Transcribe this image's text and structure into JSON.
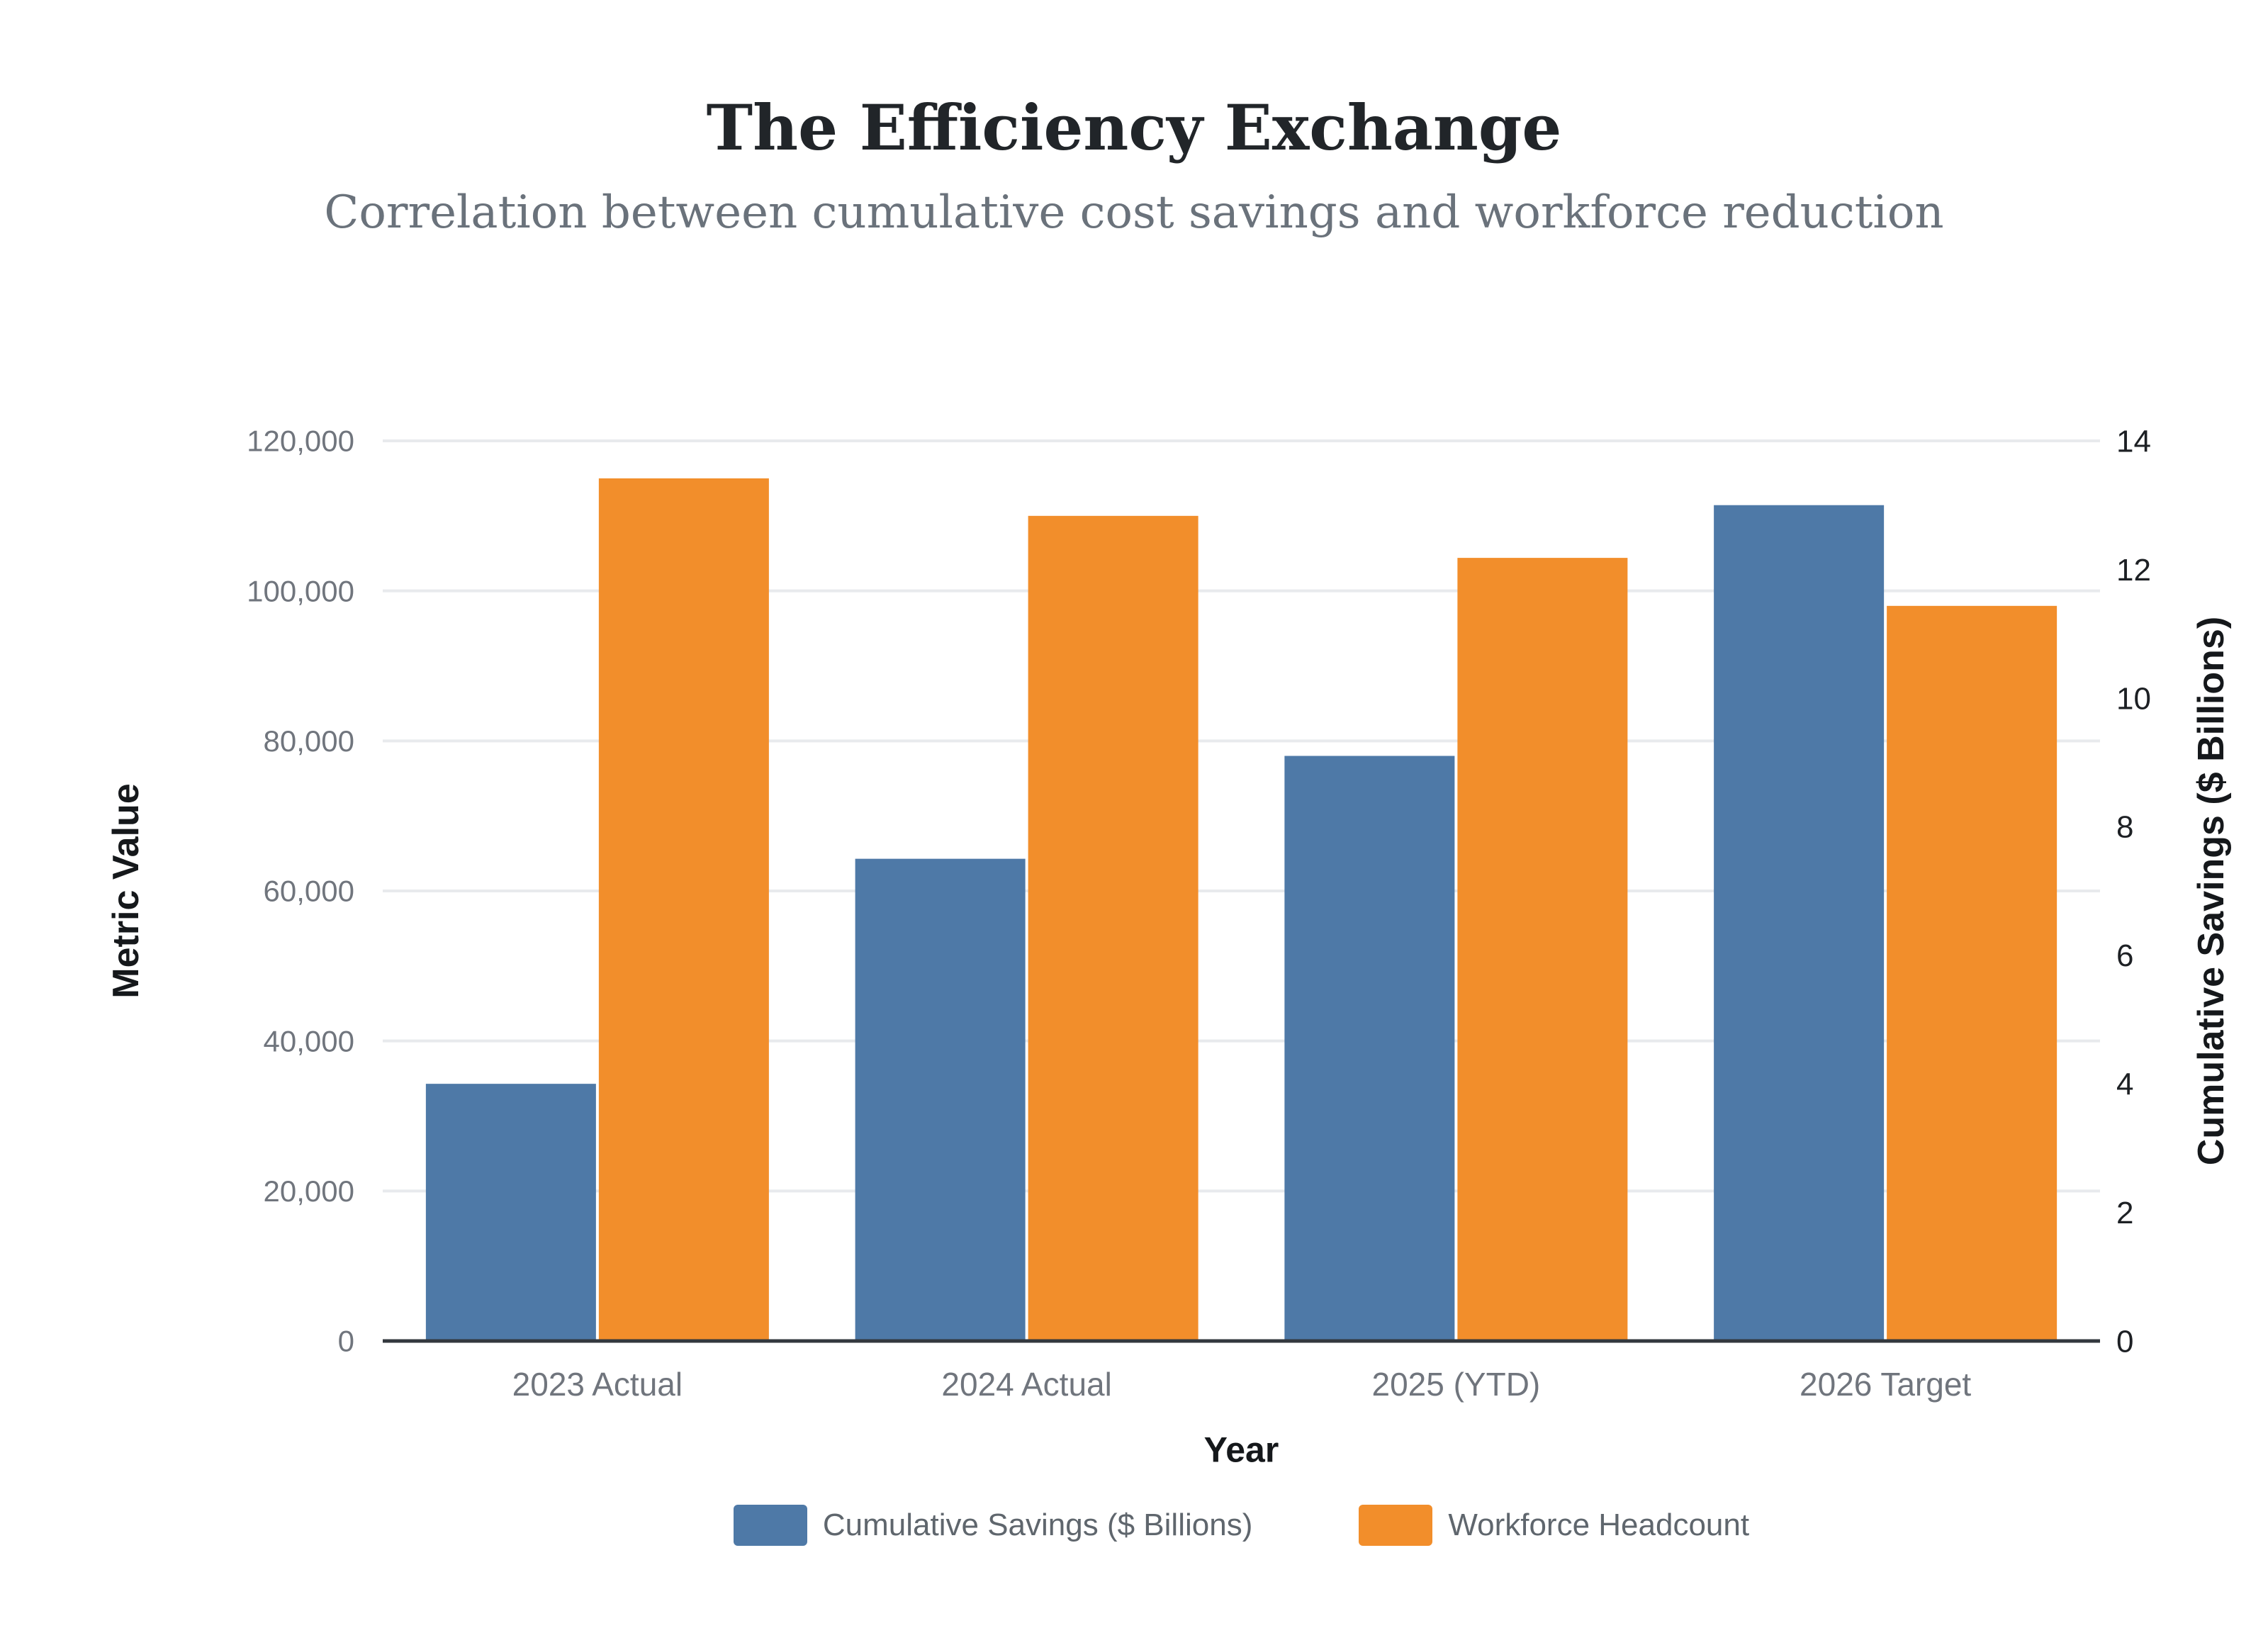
{
  "header": {
    "title": "The Efficiency Exchange",
    "subtitle": "Correlation between cumulative cost savings and workforce reduction"
  },
  "chart_data": {
    "type": "bar",
    "title": "The Efficiency Exchange",
    "subtitle": "Correlation between cumulative cost savings and workforce reduction",
    "categories": [
      "2023 Actual",
      "2024 Actual",
      "2025 (YTD)",
      "2026 Target"
    ],
    "series": [
      {
        "name": "Cumulative Savings ($ Billions)",
        "axis": "right",
        "color": "#4E79A7",
        "values": [
          4.0,
          7.5,
          9.1,
          13.0
        ]
      },
      {
        "name": "Workforce Headcount",
        "axis": "left",
        "color": "#F28E2B",
        "values": [
          115000,
          110000,
          104400,
          98000
        ]
      }
    ],
    "xlabel": "Year",
    "left_axis": {
      "label": "Metric Value",
      "min": 0,
      "max": 120000,
      "tick_step": 20000,
      "tick_labels": [
        "0",
        "20,000",
        "40,000",
        "60,000",
        "80,000",
        "100,000",
        "120,000"
      ]
    },
    "right_axis": {
      "label": "Cumulative Savings ($ Billions)",
      "min": 0,
      "max": 14,
      "tick_step": 2,
      "tick_labels": [
        "0",
        "2",
        "4",
        "6",
        "8",
        "10",
        "12",
        "14"
      ]
    },
    "grid": true,
    "legend_position": "bottom"
  },
  "colors": {
    "background": "#FFFFFF",
    "bar_blue": "#4E79A7",
    "bar_orange": "#F28E2B",
    "gridline": "#E8EAED",
    "axis_line": "#33383E",
    "title_text": "#212529",
    "subtitle_text": "#6A727B",
    "left_tick_text": "#70757D",
    "right_tick_text": "#1D2024",
    "axis_title_text": "#15181B",
    "x_tick_text": "#70757D",
    "legend_text": "#5F666D"
  }
}
